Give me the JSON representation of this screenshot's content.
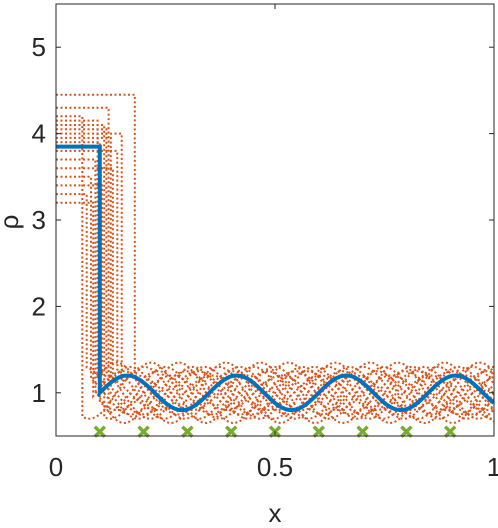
{
  "chart_data": {
    "type": "line",
    "title": "",
    "xlabel": "x",
    "ylabel": "ρ",
    "xlim": [
      0,
      1
    ],
    "ylim": [
      0.5,
      5.5
    ],
    "xticks": [
      0,
      0.5,
      1
    ],
    "xtick_labels": [
      "0",
      "0.5",
      "1"
    ],
    "yticks": [
      1,
      2,
      3,
      4,
      5
    ],
    "ytick_labels": [
      "1",
      "2",
      "3",
      "4",
      "5"
    ],
    "grid": false,
    "legend": "none",
    "colors": {
      "mean": "#0072BD",
      "samples": "#D95319",
      "markers": "#77AC30",
      "axis": "#262626"
    },
    "main_series": {
      "x_shock": 0.1,
      "rho_left": 3.85,
      "rho_right_base": 1.0,
      "amplitude": 0.2,
      "wavelength": 0.25,
      "points_x": [
        0,
        0.1,
        0.1,
        0.12,
        0.1625,
        0.225,
        0.2875,
        0.35,
        0.4125,
        0.475,
        0.5375,
        0.6,
        0.6625,
        0.725,
        0.7875,
        0.85,
        0.9125,
        0.975,
        1.0
      ],
      "points_y": [
        3.85,
        3.85,
        1.0,
        1.1,
        1.2,
        1.0,
        0.8,
        1.0,
        1.2,
        1.0,
        0.8,
        1.0,
        1.2,
        1.0,
        0.8,
        1.0,
        1.2,
        1.0,
        1.1
      ]
    },
    "sample_series": [
      {
        "shock": 0.07,
        "left": 3.3,
        "phase": 0.0,
        "amp": 0.3
      },
      {
        "shock": 0.08,
        "left": 3.5,
        "phase": 0.4,
        "amp": 0.25
      },
      {
        "shock": 0.09,
        "left": 3.7,
        "phase": 0.8,
        "amp": 0.35
      },
      {
        "shock": 0.1,
        "left": 3.9,
        "phase": 1.2,
        "amp": 0.2
      },
      {
        "shock": 0.11,
        "left": 4.1,
        "phase": 1.6,
        "amp": 0.3
      },
      {
        "shock": 0.12,
        "left": 4.3,
        "phase": 2.0,
        "amp": 0.25
      },
      {
        "shock": 0.18,
        "left": 4.45,
        "phase": 2.4,
        "amp": 0.35
      },
      {
        "shock": 0.06,
        "left": 4.2,
        "phase": 2.8,
        "amp": 0.3
      },
      {
        "shock": 0.15,
        "left": 4.0,
        "phase": 3.2,
        "amp": 0.2
      },
      {
        "shock": 0.13,
        "left": 3.6,
        "phase": 3.6,
        "amp": 0.3
      },
      {
        "shock": 0.085,
        "left": 3.2,
        "phase": 4.0,
        "amp": 0.25
      },
      {
        "shock": 0.095,
        "left": 4.15,
        "phase": 4.4,
        "amp": 0.35
      },
      {
        "shock": 0.14,
        "left": 3.8,
        "phase": 4.8,
        "amp": 0.3
      },
      {
        "shock": 0.105,
        "left": 3.4,
        "phase": 5.2,
        "amp": 0.2
      },
      {
        "shock": 0.115,
        "left": 4.05,
        "phase": 5.6,
        "amp": 0.3
      },
      {
        "shock": 0.125,
        "left": 3.95,
        "phase": 6.0,
        "amp": 0.25
      }
    ],
    "markers": {
      "x": [
        0.1,
        0.2,
        0.3,
        0.4,
        0.5,
        0.6,
        0.7,
        0.8,
        0.9
      ],
      "y": [
        0.55,
        0.55,
        0.55,
        0.55,
        0.55,
        0.55,
        0.55,
        0.55,
        0.55
      ]
    }
  }
}
